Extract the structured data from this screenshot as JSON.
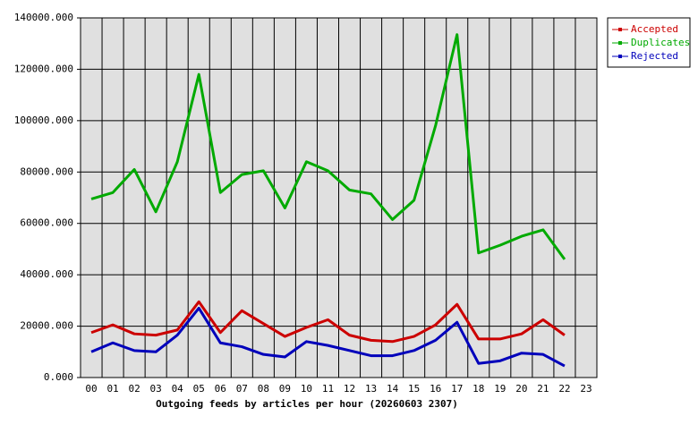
{
  "chart_data": {
    "type": "line",
    "x_label": "Outgoing feeds by articles per hour (20260603 2307)",
    "categories": [
      "00",
      "01",
      "02",
      "03",
      "04",
      "05",
      "06",
      "07",
      "08",
      "09",
      "10",
      "11",
      "12",
      "13",
      "14",
      "15",
      "16",
      "17",
      "18",
      "19",
      "20",
      "21",
      "22",
      "23"
    ],
    "series": [
      {
        "name": "Accepted",
        "color": "#cc0000",
        "values": [
          17500,
          20500,
          17000,
          16500,
          18500,
          29500,
          17500,
          26000,
          21000,
          16000,
          19500,
          22500,
          16500,
          14500,
          14000,
          16000,
          20500,
          28500,
          15000,
          15000,
          17000,
          22500,
          16500,
          null
        ]
      },
      {
        "name": "Duplicates",
        "color": "#00aa00",
        "values": [
          69500,
          72000,
          81000,
          64500,
          84000,
          118000,
          72000,
          79000,
          80500,
          66000,
          84000,
          80500,
          73000,
          71500,
          61500,
          69000,
          98000,
          133500,
          48500,
          51500,
          55000,
          57500,
          46000,
          null
        ]
      },
      {
        "name": "Rejected",
        "color": "#0000bb",
        "values": [
          10000,
          13500,
          10500,
          10000,
          16500,
          27000,
          13500,
          12000,
          9000,
          8000,
          14000,
          12500,
          10500,
          8500,
          8500,
          10500,
          14500,
          21500,
          5500,
          6500,
          9500,
          9000,
          4500,
          null
        ]
      }
    ],
    "ylim": [
      0,
      140000
    ],
    "yticks": [
      {
        "value": 0,
        "label": "0.000"
      },
      {
        "value": 20000,
        "label": "20000.000"
      },
      {
        "value": 40000,
        "label": "40000.000"
      },
      {
        "value": 60000,
        "label": "60000.000"
      },
      {
        "value": 80000,
        "label": "80000.000"
      },
      {
        "value": 100000,
        "label": "100000.000"
      },
      {
        "value": 120000,
        "label": "120000.000"
      },
      {
        "value": 140000,
        "label": "140000.000"
      }
    ],
    "grid": true,
    "legend": "top-right"
  }
}
